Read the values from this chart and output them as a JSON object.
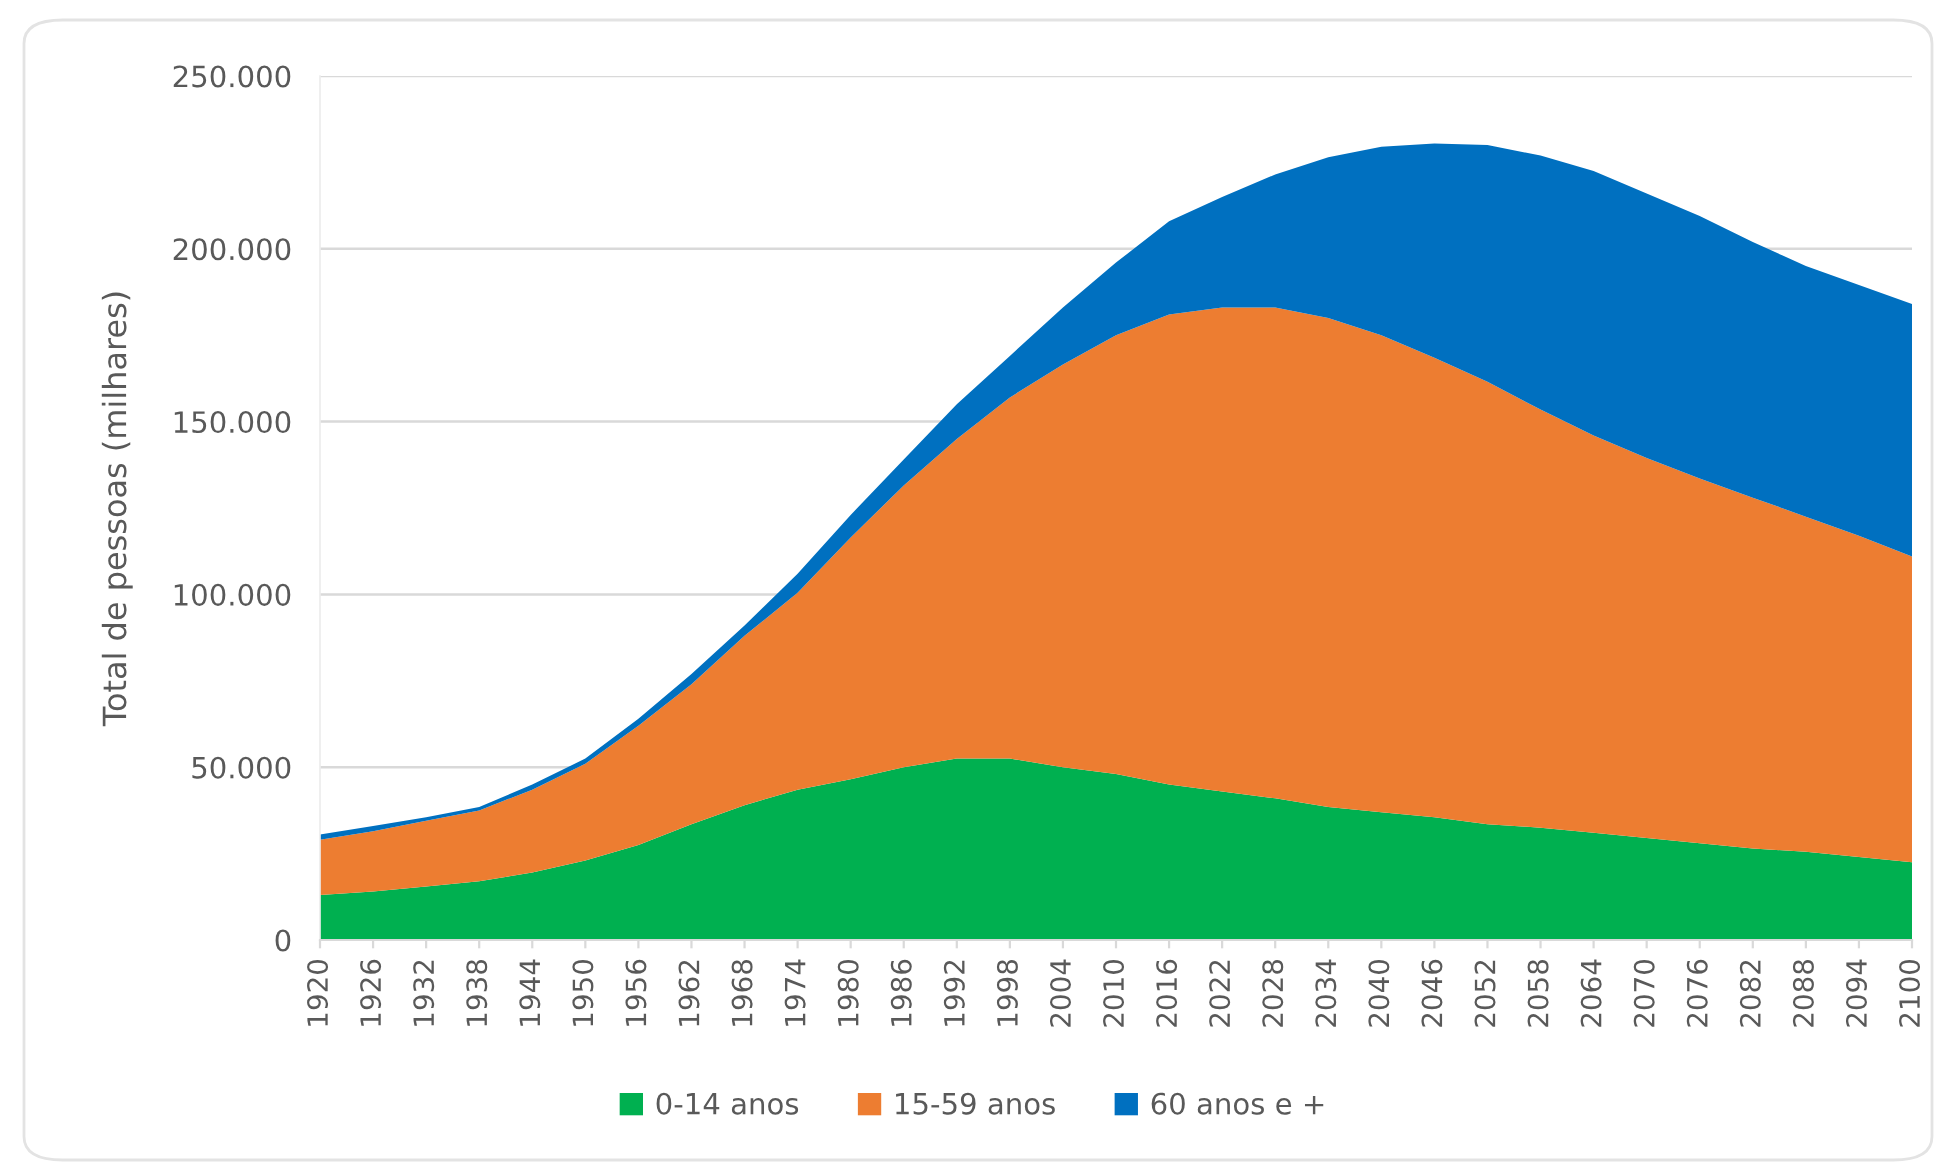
{
  "chart_data": {
    "type": "area",
    "stacked": true,
    "x": [
      1920,
      1926,
      1932,
      1938,
      1944,
      1950,
      1956,
      1962,
      1968,
      1974,
      1980,
      1986,
      1992,
      1998,
      2004,
      2010,
      2016,
      2022,
      2028,
      2034,
      2040,
      2046,
      2052,
      2058,
      2064,
      2070,
      2076,
      2082,
      2088,
      2094,
      2100
    ],
    "series": [
      {
        "name": "0-14 anos",
        "color": "#00b050",
        "values": [
          13000,
          14000,
          15500,
          17000,
          19500,
          23000,
          27500,
          33500,
          39000,
          43500,
          46500,
          50000,
          52500,
          52500,
          50000,
          48000,
          45000,
          43000,
          41000,
          38500,
          37000,
          35500,
          33500,
          32500,
          31000,
          29500,
          28000,
          26500,
          25500,
          24000,
          22500
        ]
      },
      {
        "name": "15-59 anos",
        "color": "#ed7d31",
        "values": [
          16000,
          17500,
          19000,
          20500,
          24000,
          28000,
          34500,
          40500,
          49000,
          57000,
          70000,
          81500,
          92500,
          104500,
          116500,
          127000,
          136000,
          140000,
          142000,
          141500,
          138000,
          133000,
          128000,
          121000,
          115000,
          110000,
          105500,
          101500,
          97000,
          93000,
          88500
        ]
      },
      {
        "name": "60 anos e +",
        "color": "#0070c0",
        "values": [
          1500,
          1500,
          1000,
          1000,
          1500,
          1500,
          2000,
          3000,
          3000,
          5500,
          6500,
          7500,
          10000,
          12000,
          16500,
          21000,
          27000,
          32000,
          38500,
          46500,
          54500,
          62000,
          68500,
          73500,
          76500,
          76500,
          76000,
          74000,
          72500,
          72500,
          73000
        ]
      }
    ],
    "ylabel": "Total de pessoas (milhares)",
    "xlim": [
      1920,
      2100
    ],
    "xticks": [
      1920,
      1926,
      1932,
      1938,
      1944,
      1950,
      1956,
      1962,
      1968,
      1974,
      1980,
      1986,
      1992,
      1998,
      2004,
      2010,
      2016,
      2022,
      2028,
      2034,
      2040,
      2046,
      2052,
      2058,
      2064,
      2070,
      2076,
      2082,
      2088,
      2094,
      2100
    ],
    "ylim": [
      0,
      250000
    ],
    "yticks": [
      0,
      {
        "value": 50000,
        "label": "50.000"
      },
      {
        "value": 100000,
        "label": "100.000"
      },
      {
        "value": 150000,
        "label": "150.000"
      },
      {
        "value": 200000,
        "label": "200.000"
      },
      {
        "value": 250000,
        "label": "250.000"
      }
    ],
    "grid": "y",
    "legend": "bottom"
  }
}
